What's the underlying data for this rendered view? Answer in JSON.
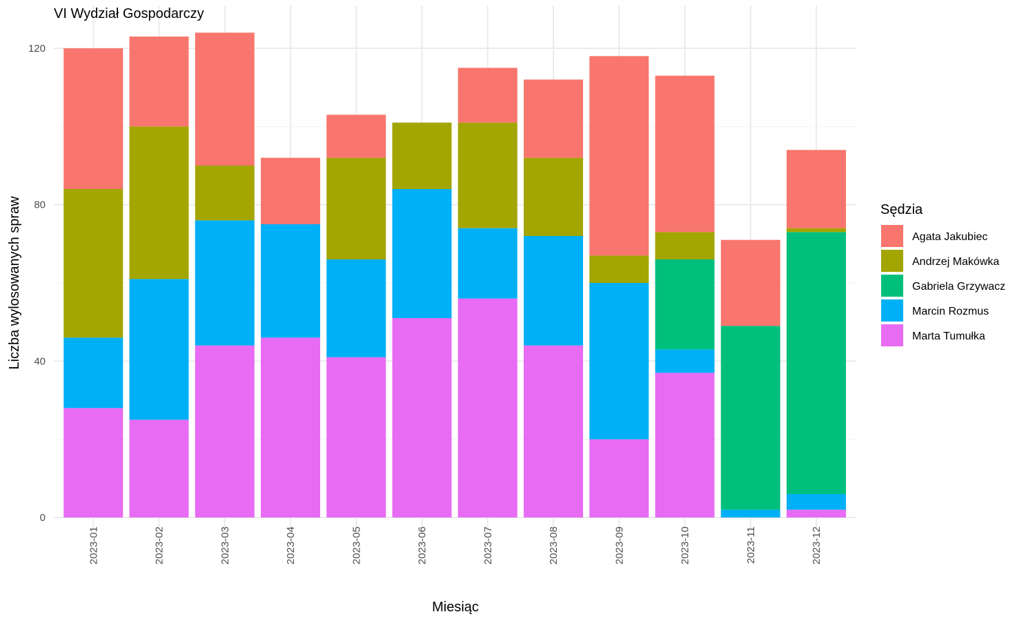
{
  "chart_data": {
    "type": "bar",
    "stacked": true,
    "title": "VI Wydział Gospodarczy",
    "xlabel": "Miesiąc",
    "ylabel": "Liczba wylosowanych spraw",
    "ylim": [
      0,
      125
    ],
    "yticks": [
      0,
      40,
      80,
      120
    ],
    "grid": true,
    "legend": {
      "title": "Sędzia",
      "placement": "right"
    },
    "categories": [
      "2023-01",
      "2023-02",
      "2023-03",
      "2023-04",
      "2023-05",
      "2023-06",
      "2023-07",
      "2023-08",
      "2023-09",
      "2023-10",
      "2023-11",
      "2023-12"
    ],
    "series": [
      {
        "name": "Agata Jakubiec",
        "color": "#F8766D",
        "values": [
          36,
          23,
          34,
          17,
          11,
          0,
          14,
          20,
          51,
          40,
          22,
          20
        ]
      },
      {
        "name": "Andrzej Makówka",
        "color": "#A3A500",
        "values": [
          38,
          39,
          14,
          0,
          26,
          17,
          27,
          20,
          7,
          7,
          0,
          1
        ]
      },
      {
        "name": "Gabriela Grzywacz",
        "color": "#00BF7D",
        "values": [
          0,
          0,
          0,
          0,
          0,
          0,
          0,
          0,
          0,
          23,
          47,
          67
        ]
      },
      {
        "name": "Marcin Rozmus",
        "color": "#00B0F6",
        "values": [
          18,
          36,
          32,
          29,
          25,
          33,
          18,
          28,
          40,
          6,
          2,
          4
        ]
      },
      {
        "name": "Marta Tumułka",
        "color": "#E76BF3",
        "values": [
          28,
          25,
          44,
          46,
          41,
          51,
          56,
          44,
          20,
          37,
          0,
          2
        ]
      }
    ]
  }
}
